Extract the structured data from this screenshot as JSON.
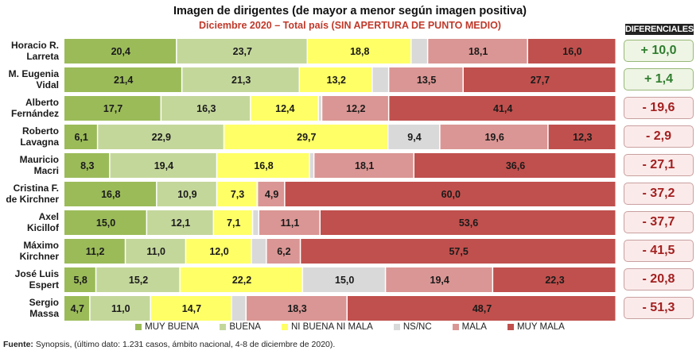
{
  "header": {
    "title": "Imagen de dirigentes (de mayor a menor según imagen positiva)",
    "subtitle": "Diciembre 2020 – Total país (SIN APERTURA DE PUNTO MEDIO)",
    "diff_header": "DIFERENCIALES"
  },
  "chart_data": {
    "type": "bar",
    "orientation": "horizontal",
    "stacked": true,
    "normalized": "100%",
    "categories": [
      [
        "Horacio R.",
        "Larreta"
      ],
      [
        "M. Eugenia",
        "Vidal"
      ],
      [
        "Alberto",
        "Fernández"
      ],
      [
        "Roberto",
        "Lavagna"
      ],
      [
        "Mauricio",
        "Macri"
      ],
      [
        "Cristina F.",
        "de Kirchner"
      ],
      [
        "Axel",
        "Kicillof"
      ],
      [
        "Máximo",
        "Kirchner"
      ],
      [
        "José Luis",
        "Espert"
      ],
      [
        "Sergio",
        "Massa"
      ]
    ],
    "series": [
      {
        "name": "MUY BUENA",
        "color": "#9bbb59",
        "values": [
          20.4,
          21.4,
          17.7,
          6.1,
          8.3,
          16.8,
          15.0,
          11.2,
          5.8,
          4.7
        ]
      },
      {
        "name": "BUENA",
        "color": "#c4d79b",
        "values": [
          23.7,
          21.3,
          16.3,
          22.9,
          19.4,
          10.9,
          12.1,
          11.0,
          15.2,
          11.0
        ]
      },
      {
        "name": "NI BUENA NI MALA",
        "color": "#ffff66",
        "values": [
          18.8,
          13.2,
          12.4,
          29.7,
          16.8,
          7.3,
          7.1,
          12.0,
          22.2,
          14.7
        ]
      },
      {
        "name": "NS/NC",
        "color": "#d9d9d9",
        "values": [
          3.0,
          3.0,
          0.6,
          9.4,
          0.8,
          0.1,
          1.1,
          2.7,
          15.0,
          2.6
        ]
      },
      {
        "name": "MALA",
        "color": "#da9694",
        "values": [
          18.1,
          13.5,
          12.2,
          19.6,
          18.1,
          4.9,
          11.1,
          6.2,
          19.4,
          18.3
        ]
      },
      {
        "name": "MUY MALA",
        "color": "#c0504d",
        "values": [
          16.0,
          27.7,
          41.4,
          12.3,
          36.6,
          60.0,
          53.6,
          57.5,
          22.3,
          48.7
        ]
      }
    ],
    "data_labels": [
      [
        "20,4",
        "23,7",
        "18,8",
        "",
        "18,1",
        "16,0"
      ],
      [
        "21,4",
        "21,3",
        "13,2",
        "",
        "13,5",
        "27,7"
      ],
      [
        "17,7",
        "16,3",
        "12,4",
        "",
        "12,2",
        "41,4"
      ],
      [
        "6,1",
        "22,9",
        "29,7",
        "9,4",
        "19,6",
        "12,3"
      ],
      [
        "8,3",
        "19,4",
        "16,8",
        "",
        "18,1",
        "36,6"
      ],
      [
        "16,8",
        "10,9",
        "7,3",
        "",
        "4,9",
        "60,0"
      ],
      [
        "15,0",
        "12,1",
        "7,1",
        "",
        "11,1",
        "53,6"
      ],
      [
        "11,2",
        "11,0",
        "12,0",
        "",
        "6,2",
        "57,5"
      ],
      [
        "5,8",
        "15,2",
        "22,2",
        "15,0",
        "19,4",
        "22,3"
      ],
      [
        "4,7",
        "11,0",
        "14,7",
        "",
        "18,3",
        "48,7"
      ]
    ],
    "diferenciales": [
      "+ 10,0",
      "+ 1,4",
      "- 19,6",
      "- 2,9",
      "- 27,1",
      "- 37,2",
      "- 37,7",
      "- 41,5",
      "- 20,8",
      "- 51,3"
    ],
    "diferenciales_values": [
      10.0,
      1.4,
      -19.6,
      -2.9,
      -27.1,
      -37.2,
      -37.7,
      -41.5,
      -20.8,
      -51.3
    ],
    "legend_position": "bottom",
    "grid": false
  },
  "footer": {
    "source_label": "Fuente:",
    "source_text": " Synopsis, (último dato: 1.231 casos, ámbito nacional, 4-8 de diciembre de 2020)."
  }
}
